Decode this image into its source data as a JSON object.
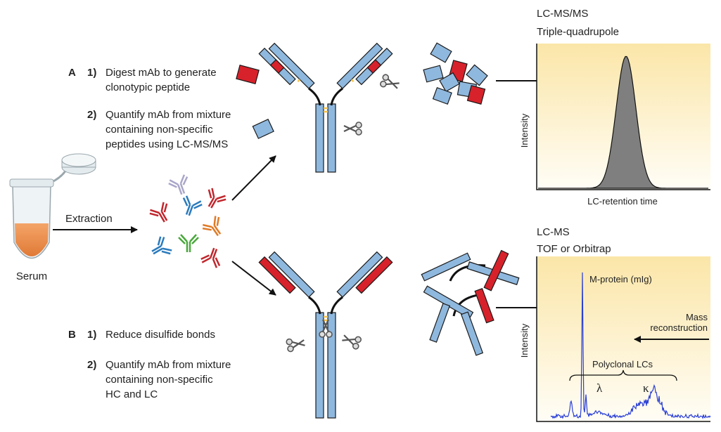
{
  "sample": {
    "label": "Serum",
    "step": "Extraction"
  },
  "workflow_a": {
    "letter": "A",
    "steps": [
      {
        "number": "1)",
        "lines": [
          "Digest mAb to generate",
          "clonotypic peptide"
        ]
      },
      {
        "number": "2)",
        "lines": [
          "Quantify mAb from mixture",
          "containing non-specific",
          "peptides using LC-MS/MS"
        ]
      }
    ]
  },
  "workflow_b": {
    "letter": "B",
    "steps": [
      {
        "number": "1)",
        "lines": [
          "Reduce disulfide bonds"
        ]
      },
      {
        "number": "2)",
        "lines": [
          "Quantify mAb from mixture",
          "containing non-specific",
          "HC and LC"
        ]
      }
    ]
  },
  "chromatogram": {
    "title": "LC-MS/MS",
    "subtitle": "Triple-quadrupole",
    "y_label": "Intensity",
    "x_label": "LC-retention time"
  },
  "spectrum": {
    "title": "LC-MS",
    "subtitle": "TOF or Orbitrap",
    "y_label": "Intensity",
    "peak_label": "M-protein (mIg)",
    "arrow_label": [
      "Mass",
      "reconstruction"
    ],
    "group_label": "Polyclonal LCs",
    "lambda": "λ",
    "kappa": "κ"
  }
}
